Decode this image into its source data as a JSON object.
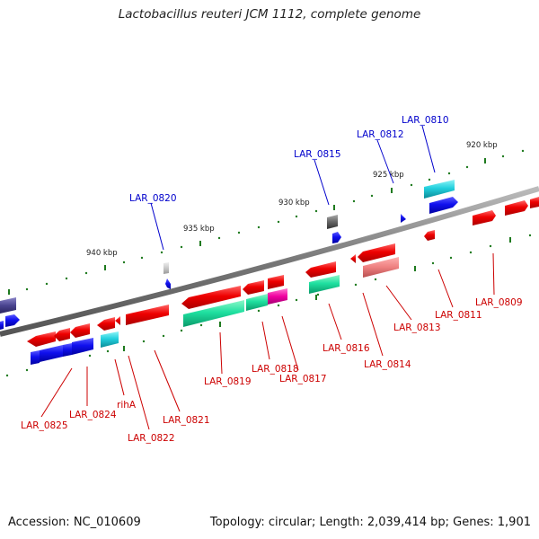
{
  "title": "Lactobacillus reuteri JCM 1112, complete genome",
  "footer": {
    "accession": "Accession: NC_010609",
    "summary": "Topology: circular; Length: 2,039,414 bp; Genes: 1,901"
  },
  "ruler": [
    "940 kbp",
    "935 kbp",
    "930 kbp",
    "925 kbp",
    "920 kbp"
  ],
  "gene_labels_top": [
    "LAR_0820",
    "LAR_0815",
    "LAR_0812",
    "LAR_0810"
  ],
  "gene_labels_bottom": [
    "LAR_0825",
    "LAR_0824",
    "rihA",
    "LAR_0822",
    "LAR_0821",
    "LAR_0819",
    "LAR_0818",
    "LAR_0817",
    "LAR_0816",
    "LAR_0814",
    "LAR_0813",
    "LAR_0811",
    "LAR_0809"
  ],
  "colors": {
    "forward_gene": "#dd0000",
    "reverse_gene": "#0000dd",
    "top_label": "#0000cc",
    "bottom_label": "#cc0000",
    "backbone": "#888888",
    "tick": "#1f7a1f"
  }
}
